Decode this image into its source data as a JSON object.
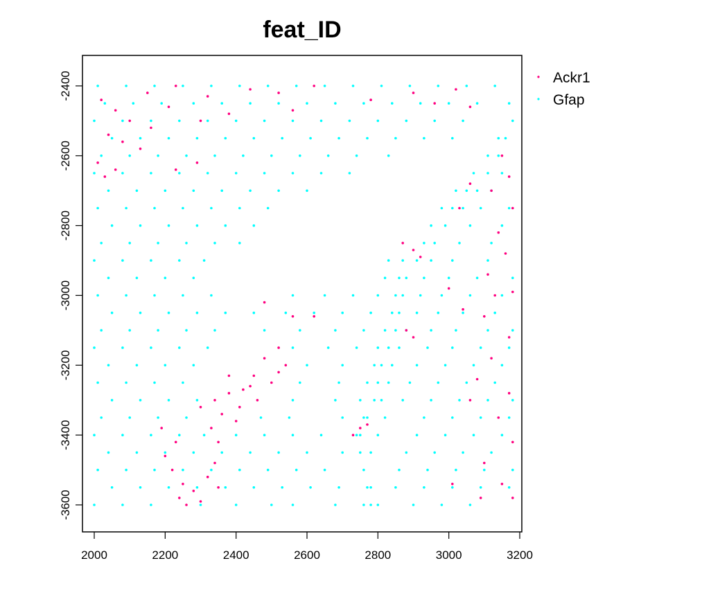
{
  "chart_data": {
    "type": "scatter",
    "title": "feat_ID",
    "xlabel": "",
    "ylabel": "",
    "xlim": [
      1965,
      3205
    ],
    "ylim": [
      -3680,
      -2312
    ],
    "xticks": [
      2000,
      2200,
      2400,
      2600,
      2800,
      3000,
      3200
    ],
    "yticks": [
      -2400,
      -2600,
      -2800,
      -3000,
      -3200,
      -3400,
      -3600
    ],
    "grid": false,
    "legend_placement": "outside-top-right",
    "series": [
      {
        "name": "Gfap",
        "color": "#00FFFF",
        "rows": [
          {
            "y": -2400,
            "x": [
              2010,
              2090,
              2170,
              2250,
              2330,
              2410,
              2490,
              2570,
              2650,
              2730,
              2810,
              2890,
              2970,
              3050,
              3130
            ]
          },
          {
            "y": -2450,
            "x": [
              2030,
              2110,
              2190,
              2280,
              2360,
              2440,
              2520,
              2600,
              2680,
              2760,
              2840,
              2920,
              3000,
              3080,
              3170
            ]
          },
          {
            "y": -2500,
            "x": [
              2000,
              2080,
              2160,
              2240,
              2320,
              2400,
              2480,
              2560,
              2640,
              2720,
              2800,
              2880,
              2960,
              3040,
              3180
            ]
          },
          {
            "y": -2550,
            "x": [
              2050,
              2130,
              2210,
              2290,
              2370,
              2450,
              2530,
              2610,
              2690,
              2770,
              2850,
              2930,
              3010,
              3140,
              3160
            ]
          },
          {
            "y": -2600,
            "x": [
              2020,
              2100,
              2180,
              2260,
              2340,
              2420,
              2500,
              2580,
              2660,
              2740,
              2830,
              3110,
              3140
            ]
          },
          {
            "y": -2650,
            "x": [
              2000,
              2080,
              2160,
              2240,
              2320,
              2400,
              2480,
              2560,
              2640,
              2720,
              3070,
              3110,
              3150
            ]
          },
          {
            "y": -2700,
            "x": [
              2040,
              2120,
              2200,
              2280,
              2360,
              2440,
              2520,
              2600,
              3020,
              3050,
              3080,
              3120
            ]
          },
          {
            "y": -2750,
            "x": [
              2010,
              2090,
              2170,
              2250,
              2330,
              2410,
              2490,
              2980,
              3010,
              3040,
              3090,
              3170
            ]
          },
          {
            "y": -2800,
            "x": [
              2050,
              2130,
              2210,
              2290,
              2370,
              2450,
              2950,
              2990,
              3060,
              3150
            ]
          },
          {
            "y": -2850,
            "x": [
              2020,
              2100,
              2180,
              2260,
              2340,
              2410,
              2930,
              2960,
              3030,
              3120
            ]
          },
          {
            "y": -2900,
            "x": [
              2000,
              2080,
              2160,
              2240,
              2310,
              2830,
              2870,
              2910,
              2950,
              3010,
              3110
            ]
          },
          {
            "y": -2950,
            "x": [
              2040,
              2120,
              2200,
              2280,
              2820,
              2860,
              2880,
              2930,
              3000,
              3080,
              3180
            ]
          },
          {
            "y": -3000,
            "x": [
              2010,
              2090,
              2170,
              2250,
              2330,
              2560,
              2650,
              2730,
              2800,
              2850,
              2870,
              2920,
              2980,
              3060,
              3150
            ]
          },
          {
            "y": -3050,
            "x": [
              2050,
              2130,
              2210,
              2290,
              2370,
              2450,
              2540,
              2620,
              2700,
              2780,
              2840,
              2860,
              2910,
              2970,
              3040,
              3130
            ]
          },
          {
            "y": -3100,
            "x": [
              2020,
              2100,
              2180,
              2260,
              2340,
              2480,
              2580,
              2680,
              2760,
              2820,
              2850,
              2880,
              2950,
              3020,
              3110,
              3180
            ]
          },
          {
            "y": -3150,
            "x": [
              2000,
              2080,
              2160,
              2240,
              2320,
              2560,
              2660,
              2740,
              2800,
              2830,
              2860,
              2940,
              3010,
              3090,
              3170
            ]
          },
          {
            "y": -3200,
            "x": [
              2040,
              2120,
              2200,
              2280,
              2600,
              2700,
              2790,
              2810,
              2840,
              2910,
              2990,
              3070,
              3150
            ]
          },
          {
            "y": -3250,
            "x": [
              2010,
              2090,
              2170,
              2250,
              2580,
              2690,
              2770,
              2800,
              2830,
              2890,
              2970,
              3050,
              3130
            ]
          },
          {
            "y": -3300,
            "x": [
              2050,
              2130,
              2210,
              2290,
              2560,
              2680,
              2750,
              2790,
              2810,
              2870,
              2950,
              3030,
              3110,
              3180
            ]
          },
          {
            "y": -3350,
            "x": [
              2020,
              2100,
              2180,
              2260,
              2470,
              2550,
              2700,
              2760,
              2770,
              2820,
              2930,
              3010,
              3090,
              3170
            ]
          },
          {
            "y": -3400,
            "x": [
              2000,
              2080,
              2160,
              2240,
              2310,
              2400,
              2480,
              2560,
              2640,
              2740,
              2750,
              2800,
              2910,
              2990,
              3070,
              3150
            ]
          },
          {
            "y": -3450,
            "x": [
              2040,
              2120,
              2200,
              2280,
              2360,
              2440,
              2520,
              2600,
              2700,
              2750,
              2780,
              2880,
              2960,
              3040,
              3120
            ]
          },
          {
            "y": -3500,
            "x": [
              2010,
              2090,
              2170,
              2250,
              2330,
              2410,
              2490,
              2570,
              2650,
              2760,
              2860,
              2940,
              3020,
              3100,
              3180
            ]
          },
          {
            "y": -3550,
            "x": [
              2050,
              2130,
              2210,
              2290,
              2370,
              2450,
              2530,
              2610,
              2690,
              2770,
              2780,
              2850,
              2930,
              3010,
              3090,
              3170
            ]
          },
          {
            "y": -3600,
            "x": [
              2000,
              2080,
              2160,
              2300,
              2400,
              2500,
              2560,
              2680,
              2760,
              2780,
              2800,
              2900,
              2980,
              3060
            ]
          }
        ]
      },
      {
        "name": "Ackr1",
        "color": "#FF0080",
        "points": [
          [
            2020,
            -2440
          ],
          [
            2060,
            -2470
          ],
          [
            2100,
            -2500
          ],
          [
            2150,
            -2420
          ],
          [
            2210,
            -2460
          ],
          [
            2230,
            -2400
          ],
          [
            2320,
            -2430
          ],
          [
            2380,
            -2480
          ],
          [
            2440,
            -2410
          ],
          [
            2520,
            -2420
          ],
          [
            2560,
            -2470
          ],
          [
            2620,
            -2400
          ],
          [
            2780,
            -2440
          ],
          [
            2900,
            -2420
          ],
          [
            2960,
            -2450
          ],
          [
            3020,
            -2410
          ],
          [
            3060,
            -2460
          ],
          [
            2080,
            -2560
          ],
          [
            2130,
            -2580
          ],
          [
            2160,
            -2520
          ],
          [
            2040,
            -2540
          ],
          [
            2300,
            -2500
          ],
          [
            2010,
            -2620
          ],
          [
            2030,
            -2660
          ],
          [
            2060,
            -2640
          ],
          [
            2230,
            -2640
          ],
          [
            2290,
            -2620
          ],
          [
            3150,
            -2600
          ],
          [
            3170,
            -2660
          ],
          [
            3120,
            -2700
          ],
          [
            3180,
            -2750
          ],
          [
            3140,
            -2820
          ],
          [
            3160,
            -2880
          ],
          [
            3110,
            -2940
          ],
          [
            3180,
            -2990
          ],
          [
            3130,
            -3000
          ],
          [
            3100,
            -3060
          ],
          [
            3170,
            -3120
          ],
          [
            3120,
            -3180
          ],
          [
            3080,
            -3240
          ],
          [
            3170,
            -3280
          ],
          [
            3140,
            -3350
          ],
          [
            3180,
            -3420
          ],
          [
            3100,
            -3480
          ],
          [
            3150,
            -3540
          ],
          [
            3180,
            -3580
          ],
          [
            3010,
            -3540
          ],
          [
            3040,
            -3040
          ],
          [
            3000,
            -2980
          ],
          [
            3060,
            -3300
          ],
          [
            3090,
            -3580
          ],
          [
            3030,
            -2750
          ],
          [
            3060,
            -2680
          ],
          [
            2870,
            -2850
          ],
          [
            2900,
            -2870
          ],
          [
            2920,
            -2890
          ],
          [
            2880,
            -3100
          ],
          [
            2900,
            -3120
          ],
          [
            2750,
            -3380
          ],
          [
            2730,
            -3400
          ],
          [
            2770,
            -3370
          ],
          [
            2560,
            -3060
          ],
          [
            2620,
            -3060
          ],
          [
            2480,
            -3020
          ],
          [
            2520,
            -3150
          ],
          [
            2540,
            -3200
          ],
          [
            2480,
            -3180
          ],
          [
            2450,
            -3230
          ],
          [
            2500,
            -3250
          ],
          [
            2420,
            -3270
          ],
          [
            2380,
            -3280
          ],
          [
            2460,
            -3300
          ],
          [
            2340,
            -3300
          ],
          [
            2300,
            -3320
          ],
          [
            2360,
            -3340
          ],
          [
            2400,
            -3360
          ],
          [
            2330,
            -3380
          ],
          [
            2350,
            -3420
          ],
          [
            2520,
            -3220
          ],
          [
            2410,
            -3320
          ],
          [
            2440,
            -3260
          ],
          [
            2380,
            -3230
          ],
          [
            2220,
            -3500
          ],
          [
            2250,
            -3540
          ],
          [
            2280,
            -3560
          ],
          [
            2300,
            -3590
          ],
          [
            2240,
            -3580
          ],
          [
            2320,
            -3520
          ],
          [
            2350,
            -3550
          ],
          [
            2260,
            -3600
          ],
          [
            2200,
            -3460
          ],
          [
            2230,
            -3420
          ],
          [
            2340,
            -3480
          ],
          [
            2190,
            -3380
          ]
        ]
      }
    ],
    "legend": [
      "Ackr1",
      "Gfap"
    ]
  }
}
